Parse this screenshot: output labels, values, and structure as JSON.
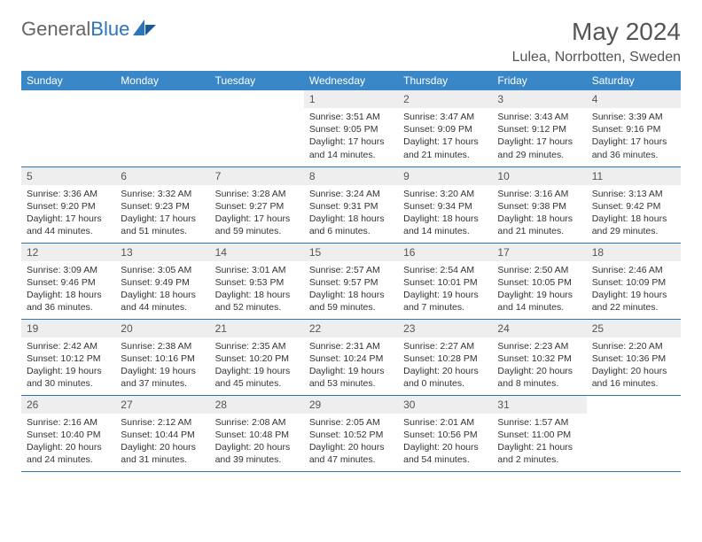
{
  "brand": {
    "name_gray": "General",
    "name_blue": "Blue"
  },
  "header": {
    "month_year": "May 2024",
    "location": "Lulea, Norrbotten, Sweden"
  },
  "colors": {
    "header_bg": "#3a87c8",
    "rule": "#2a75bb",
    "daynum_bg": "#eeeeee",
    "text": "#333333",
    "brand_gray": "#666666",
    "brand_blue": "#2a75bb"
  },
  "weekdays": [
    "Sunday",
    "Monday",
    "Tuesday",
    "Wednesday",
    "Thursday",
    "Friday",
    "Saturday"
  ],
  "weeks": [
    [
      null,
      null,
      null,
      {
        "n": "1",
        "sr": "Sunrise: 3:51 AM",
        "ss": "Sunset: 9:05 PM",
        "dl": "Daylight: 17 hours and 14 minutes."
      },
      {
        "n": "2",
        "sr": "Sunrise: 3:47 AM",
        "ss": "Sunset: 9:09 PM",
        "dl": "Daylight: 17 hours and 21 minutes."
      },
      {
        "n": "3",
        "sr": "Sunrise: 3:43 AM",
        "ss": "Sunset: 9:12 PM",
        "dl": "Daylight: 17 hours and 29 minutes."
      },
      {
        "n": "4",
        "sr": "Sunrise: 3:39 AM",
        "ss": "Sunset: 9:16 PM",
        "dl": "Daylight: 17 hours and 36 minutes."
      }
    ],
    [
      {
        "n": "5",
        "sr": "Sunrise: 3:36 AM",
        "ss": "Sunset: 9:20 PM",
        "dl": "Daylight: 17 hours and 44 minutes."
      },
      {
        "n": "6",
        "sr": "Sunrise: 3:32 AM",
        "ss": "Sunset: 9:23 PM",
        "dl": "Daylight: 17 hours and 51 minutes."
      },
      {
        "n": "7",
        "sr": "Sunrise: 3:28 AM",
        "ss": "Sunset: 9:27 PM",
        "dl": "Daylight: 17 hours and 59 minutes."
      },
      {
        "n": "8",
        "sr": "Sunrise: 3:24 AM",
        "ss": "Sunset: 9:31 PM",
        "dl": "Daylight: 18 hours and 6 minutes."
      },
      {
        "n": "9",
        "sr": "Sunrise: 3:20 AM",
        "ss": "Sunset: 9:34 PM",
        "dl": "Daylight: 18 hours and 14 minutes."
      },
      {
        "n": "10",
        "sr": "Sunrise: 3:16 AM",
        "ss": "Sunset: 9:38 PM",
        "dl": "Daylight: 18 hours and 21 minutes."
      },
      {
        "n": "11",
        "sr": "Sunrise: 3:13 AM",
        "ss": "Sunset: 9:42 PM",
        "dl": "Daylight: 18 hours and 29 minutes."
      }
    ],
    [
      {
        "n": "12",
        "sr": "Sunrise: 3:09 AM",
        "ss": "Sunset: 9:46 PM",
        "dl": "Daylight: 18 hours and 36 minutes."
      },
      {
        "n": "13",
        "sr": "Sunrise: 3:05 AM",
        "ss": "Sunset: 9:49 PM",
        "dl": "Daylight: 18 hours and 44 minutes."
      },
      {
        "n": "14",
        "sr": "Sunrise: 3:01 AM",
        "ss": "Sunset: 9:53 PM",
        "dl": "Daylight: 18 hours and 52 minutes."
      },
      {
        "n": "15",
        "sr": "Sunrise: 2:57 AM",
        "ss": "Sunset: 9:57 PM",
        "dl": "Daylight: 18 hours and 59 minutes."
      },
      {
        "n": "16",
        "sr": "Sunrise: 2:54 AM",
        "ss": "Sunset: 10:01 PM",
        "dl": "Daylight: 19 hours and 7 minutes."
      },
      {
        "n": "17",
        "sr": "Sunrise: 2:50 AM",
        "ss": "Sunset: 10:05 PM",
        "dl": "Daylight: 19 hours and 14 minutes."
      },
      {
        "n": "18",
        "sr": "Sunrise: 2:46 AM",
        "ss": "Sunset: 10:09 PM",
        "dl": "Daylight: 19 hours and 22 minutes."
      }
    ],
    [
      {
        "n": "19",
        "sr": "Sunrise: 2:42 AM",
        "ss": "Sunset: 10:12 PM",
        "dl": "Daylight: 19 hours and 30 minutes."
      },
      {
        "n": "20",
        "sr": "Sunrise: 2:38 AM",
        "ss": "Sunset: 10:16 PM",
        "dl": "Daylight: 19 hours and 37 minutes."
      },
      {
        "n": "21",
        "sr": "Sunrise: 2:35 AM",
        "ss": "Sunset: 10:20 PM",
        "dl": "Daylight: 19 hours and 45 minutes."
      },
      {
        "n": "22",
        "sr": "Sunrise: 2:31 AM",
        "ss": "Sunset: 10:24 PM",
        "dl": "Daylight: 19 hours and 53 minutes."
      },
      {
        "n": "23",
        "sr": "Sunrise: 2:27 AM",
        "ss": "Sunset: 10:28 PM",
        "dl": "Daylight: 20 hours and 0 minutes."
      },
      {
        "n": "24",
        "sr": "Sunrise: 2:23 AM",
        "ss": "Sunset: 10:32 PM",
        "dl": "Daylight: 20 hours and 8 minutes."
      },
      {
        "n": "25",
        "sr": "Sunrise: 2:20 AM",
        "ss": "Sunset: 10:36 PM",
        "dl": "Daylight: 20 hours and 16 minutes."
      }
    ],
    [
      {
        "n": "26",
        "sr": "Sunrise: 2:16 AM",
        "ss": "Sunset: 10:40 PM",
        "dl": "Daylight: 20 hours and 24 minutes."
      },
      {
        "n": "27",
        "sr": "Sunrise: 2:12 AM",
        "ss": "Sunset: 10:44 PM",
        "dl": "Daylight: 20 hours and 31 minutes."
      },
      {
        "n": "28",
        "sr": "Sunrise: 2:08 AM",
        "ss": "Sunset: 10:48 PM",
        "dl": "Daylight: 20 hours and 39 minutes."
      },
      {
        "n": "29",
        "sr": "Sunrise: 2:05 AM",
        "ss": "Sunset: 10:52 PM",
        "dl": "Daylight: 20 hours and 47 minutes."
      },
      {
        "n": "30",
        "sr": "Sunrise: 2:01 AM",
        "ss": "Sunset: 10:56 PM",
        "dl": "Daylight: 20 hours and 54 minutes."
      },
      {
        "n": "31",
        "sr": "Sunrise: 1:57 AM",
        "ss": "Sunset: 11:00 PM",
        "dl": "Daylight: 21 hours and 2 minutes."
      },
      null
    ]
  ]
}
